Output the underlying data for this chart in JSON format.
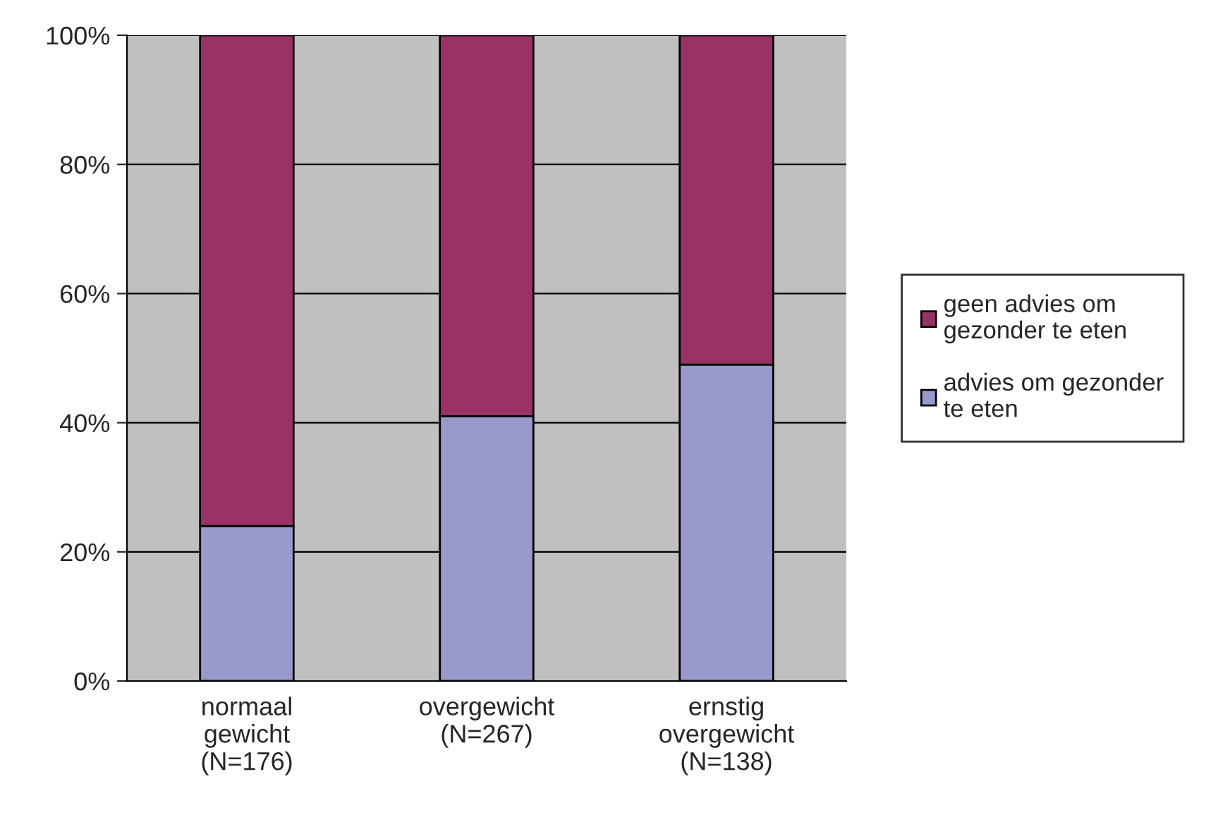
{
  "chart_data": {
    "type": "bar",
    "stacked": true,
    "categories": [
      "normaal\ngewicht\n(N=176)",
      "overgewicht\n(N=267)",
      "ernstig\novergewicht\n(N=138)"
    ],
    "series": [
      {
        "name": "advies om gezonder te eten",
        "color": "#9999cc",
        "values": [
          24,
          41,
          49
        ]
      },
      {
        "name": "geen advies om gezonder te eten",
        "color": "#993366",
        "values": [
          76,
          59,
          51
        ]
      }
    ],
    "ylim": [
      0,
      100
    ],
    "yticks": [
      {
        "value": 0,
        "label": "0%"
      },
      {
        "value": 20,
        "label": "20%"
      },
      {
        "value": 40,
        "label": "40%"
      },
      {
        "value": 60,
        "label": "60%"
      },
      {
        "value": 80,
        "label": "80%"
      },
      {
        "value": 100,
        "label": "100%"
      }
    ],
    "grid": "y",
    "legend": "right"
  }
}
